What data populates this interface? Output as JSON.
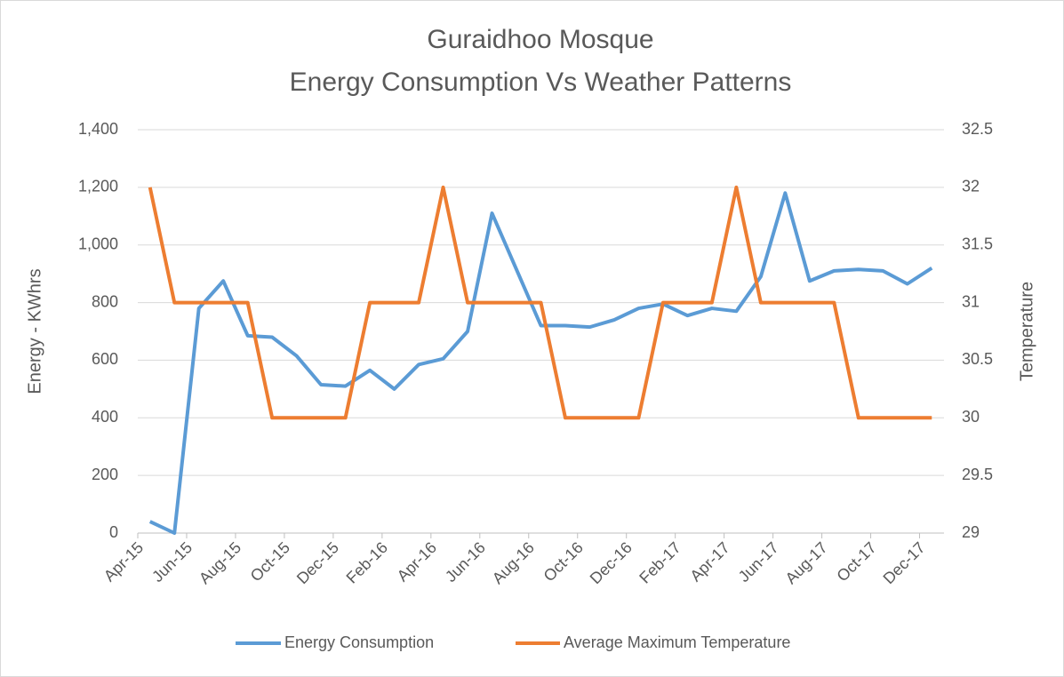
{
  "chart_data": {
    "type": "line",
    "title": [
      "Guraidhoo Mosque",
      "Energy Consumption Vs Weather Patterns"
    ],
    "ylabel": "Energy - KWhrs",
    "y2label": "Temperature",
    "categories": [
      "Apr-15",
      null,
      "Jun-15",
      null,
      "Aug-15",
      null,
      "Oct-15",
      null,
      "Dec-15",
      null,
      "Feb-16",
      null,
      "Apr-16",
      null,
      "Jun-16",
      null,
      "Aug-16",
      null,
      "Oct-16",
      null,
      "Dec-16",
      null,
      "Feb-17",
      null,
      "Apr-17",
      null,
      "Jun-17",
      null,
      "Aug-17",
      null,
      "Oct-17",
      null,
      "Dec-17"
    ],
    "series": [
      {
        "name": "Energy Consumption",
        "color": "#5b9bd5",
        "values": [
          40,
          0,
          780,
          875,
          685,
          680,
          615,
          515,
          510,
          565,
          500,
          585,
          605,
          700,
          1110,
          915,
          720,
          720,
          715,
          740,
          780,
          795,
          755,
          780,
          770,
          890,
          1180,
          875,
          910,
          915,
          910,
          865,
          920
        ]
      },
      {
        "name": "Average Maximum Temperature",
        "color": "#ed7d31",
        "axis": "y2",
        "values": [
          32,
          31,
          31,
          31,
          31,
          30,
          30,
          30,
          30,
          31,
          31,
          31,
          32,
          31,
          31,
          31,
          31,
          30,
          30,
          30,
          30,
          31,
          31,
          31,
          32,
          31,
          31,
          31,
          31,
          30,
          30,
          30,
          30
        ]
      }
    ],
    "ylim": [
      0,
      1400
    ],
    "yticks": [
      0,
      200,
      400,
      600,
      800,
      {
        "value": 1000,
        "label": "1,000"
      },
      {
        "value": 1200,
        "label": "1,200"
      },
      {
        "value": 1400,
        "label": "1,400"
      }
    ],
    "y2lim": [
      29,
      32.5
    ],
    "y2ticks": [
      29,
      29.5,
      30,
      30.5,
      31,
      31.5,
      32,
      32.5
    ],
    "grid": true,
    "legend": "bottom"
  }
}
